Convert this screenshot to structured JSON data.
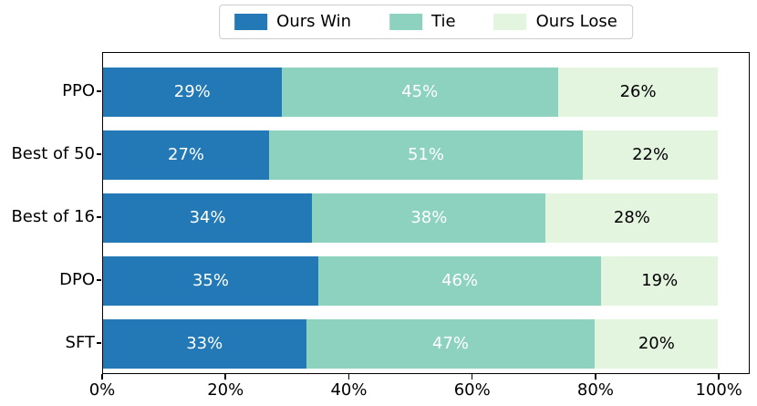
{
  "colors": {
    "win": "#2379B5",
    "tie": "#8DD2BF",
    "lose": "#E3F4DF",
    "axis": "#000000",
    "legend_border": "#cccccc",
    "background": "#ffffff"
  },
  "chart_data": {
    "type": "bar",
    "orientation": "horizontal",
    "stacked": true,
    "title": "",
    "xlabel": "",
    "ylabel": "",
    "categories": [
      "PPO",
      "Best of 50",
      "Best of 16",
      "DPO",
      "SFT"
    ],
    "series": [
      {
        "name": "Ours Win",
        "color": "#2379B5",
        "label_color": "#ffffff",
        "values": [
          29,
          27,
          34,
          35,
          33
        ]
      },
      {
        "name": "Tie",
        "color": "#8DD2BF",
        "label_color": "#ffffff",
        "values": [
          45,
          51,
          38,
          46,
          47
        ]
      },
      {
        "name": "Ours Lose",
        "color": "#E3F4DF",
        "label_color": "#000000",
        "values": [
          26,
          22,
          28,
          19,
          20
        ]
      }
    ],
    "value_suffix": "%",
    "x_ticks": [
      "0%",
      "20%",
      "40%",
      "60%",
      "80%",
      "100%"
    ],
    "x_tick_values": [
      0,
      20,
      40,
      60,
      80,
      100
    ],
    "xlim": [
      0,
      105
    ],
    "legend_position": "top-center",
    "grid": false
  }
}
